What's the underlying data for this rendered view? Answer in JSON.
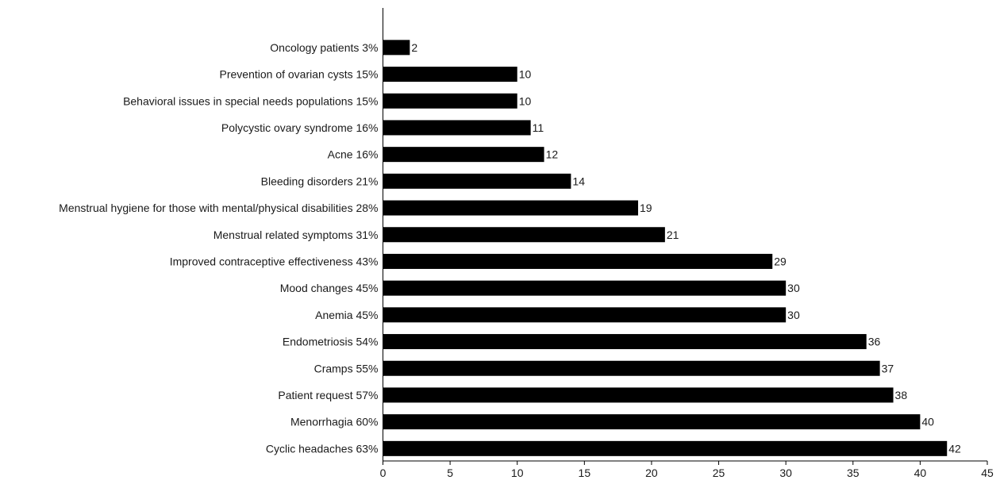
{
  "chart_data": {
    "type": "bar",
    "orientation": "horizontal",
    "categories": [
      "Oncology patients 3%",
      "Prevention of ovarian cysts 15%",
      "Behavioral issues in special needs populations 15%",
      "Polycystic ovary syndrome 16%",
      "Acne 16%",
      "Bleeding disorders 21%",
      "Menstrual hygiene for those with mental/physical disabilities 28%",
      "Menstrual related symptoms 31%",
      "Improved contraceptive effectiveness 43%",
      "Mood changes 45%",
      "Anemia 45%",
      "Endometriosis 54%",
      "Cramps 55%",
      "Patient request 57%",
      "Menorrhagia 60%",
      "Cyclic headaches 63%"
    ],
    "values": [
      2,
      10,
      10,
      11,
      12,
      14,
      19,
      21,
      29,
      30,
      30,
      36,
      37,
      38,
      40,
      42
    ],
    "xlim": [
      0,
      45
    ],
    "xticks": [
      0,
      5,
      10,
      15,
      20,
      25,
      30,
      35,
      40,
      45
    ],
    "title": "",
    "xlabel": "",
    "ylabel": "",
    "grid": false,
    "legend": "none",
    "bar_color": "#000000",
    "data_labels": true
  }
}
